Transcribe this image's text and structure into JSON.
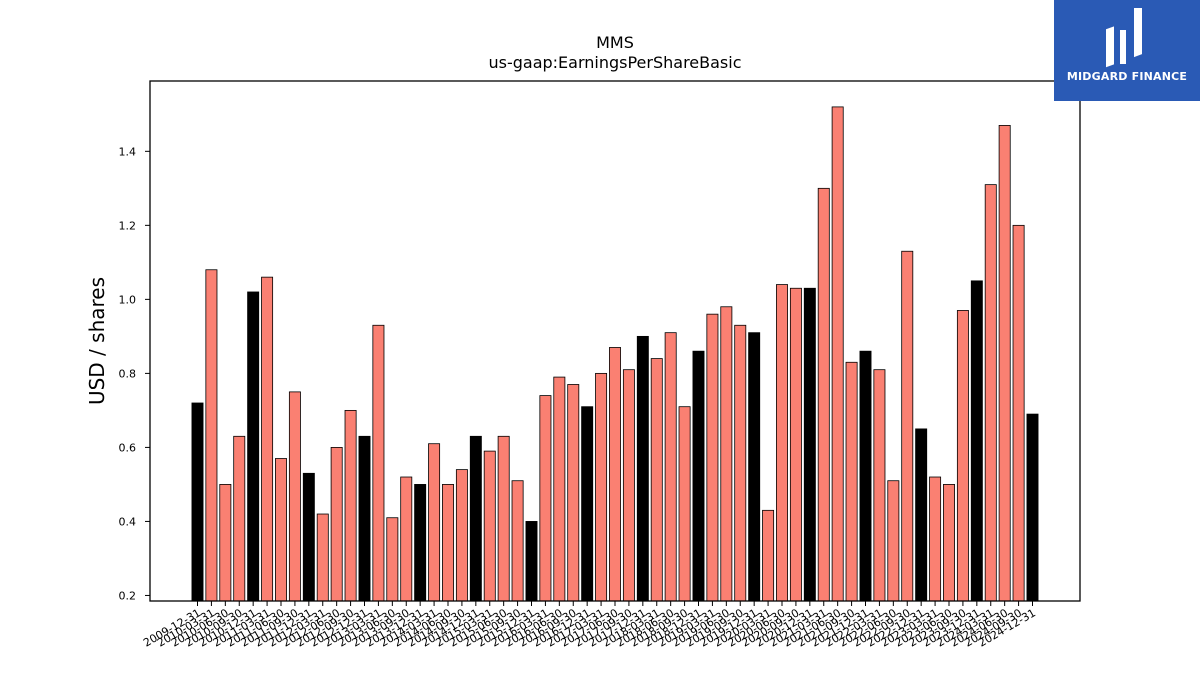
{
  "chart_data": {
    "type": "bar",
    "title": "MMS",
    "subtitle": "us-gaap:EarningsPerShareBasic",
    "ylabel": "USD / shares",
    "xlabel": "",
    "ylim": [
      0.185,
      1.59
    ],
    "yticks": [
      "0.2",
      "0.4",
      "0.6",
      "0.8",
      "1.0",
      "1.2",
      "1.4"
    ],
    "colors": {
      "quarter": "#fa8072",
      "annual": "#000000",
      "edge": "#000000"
    },
    "categories": [
      "2009-12-31",
      "2010-03-31",
      "2010-06-30",
      "2010-09-30",
      "2010-12-31",
      "2011-03-31",
      "2011-06-30",
      "2011-09-30",
      "2011-12-31",
      "2012-03-31",
      "2012-06-30",
      "2012-09-30",
      "2012-12-31",
      "2013-03-31",
      "2013-06-30",
      "2013-09-30",
      "2013-12-31",
      "2014-03-31",
      "2014-06-30",
      "2014-09-30",
      "2014-12-31",
      "2015-03-31",
      "2015-06-30",
      "2015-09-30",
      "2015-12-31",
      "2016-03-31",
      "2016-06-30",
      "2016-09-30",
      "2016-12-31",
      "2017-03-31",
      "2017-06-30",
      "2017-09-30",
      "2017-12-31",
      "2018-03-31",
      "2018-06-30",
      "2018-09-30",
      "2018-12-31",
      "2019-03-31",
      "2019-06-30",
      "2019-09-30",
      "2019-12-31",
      "2020-03-31",
      "2020-06-30",
      "2020-09-30",
      "2020-12-31",
      "2021-03-31",
      "2021-06-30",
      "2021-09-30",
      "2021-12-31",
      "2022-03-31",
      "2022-06-30",
      "2022-09-30",
      "2022-12-31",
      "2023-03-31",
      "2023-06-30",
      "2023-09-30",
      "2023-12-31",
      "2024-03-31",
      "2024-06-30",
      "2024-09-30",
      "2024-12-31"
    ],
    "values": [
      0.72,
      1.08,
      0.5,
      0.63,
      1.02,
      1.06,
      0.57,
      0.75,
      0.53,
      0.42,
      0.6,
      0.7,
      0.63,
      0.93,
      0.41,
      0.52,
      0.5,
      0.61,
      0.5,
      0.54,
      0.63,
      0.59,
      0.63,
      0.51,
      0.4,
      0.74,
      0.79,
      0.77,
      0.71,
      0.8,
      0.87,
      0.81,
      0.9,
      0.84,
      0.91,
      0.71,
      0.86,
      0.96,
      0.98,
      0.93,
      0.91,
      0.43,
      1.04,
      1.03,
      1.03,
      1.3,
      1.52,
      0.83,
      0.86,
      0.81,
      0.51,
      1.13,
      0.65,
      0.52,
      0.5,
      0.97,
      1.05,
      1.31,
      1.47,
      1.2,
      0.69
    ],
    "annual": [
      true,
      false,
      false,
      false,
      true,
      false,
      false,
      false,
      true,
      false,
      false,
      false,
      true,
      false,
      false,
      false,
      true,
      false,
      false,
      false,
      true,
      false,
      false,
      false,
      true,
      false,
      false,
      false,
      true,
      false,
      false,
      false,
      true,
      false,
      false,
      false,
      true,
      false,
      false,
      false,
      true,
      false,
      false,
      false,
      true,
      false,
      false,
      false,
      true,
      false,
      false,
      false,
      true,
      false,
      false,
      false,
      true,
      false,
      false,
      false,
      true
    ]
  },
  "logo": {
    "text": "MIDGARD FINANCE",
    "background": "#2a5ab5"
  }
}
